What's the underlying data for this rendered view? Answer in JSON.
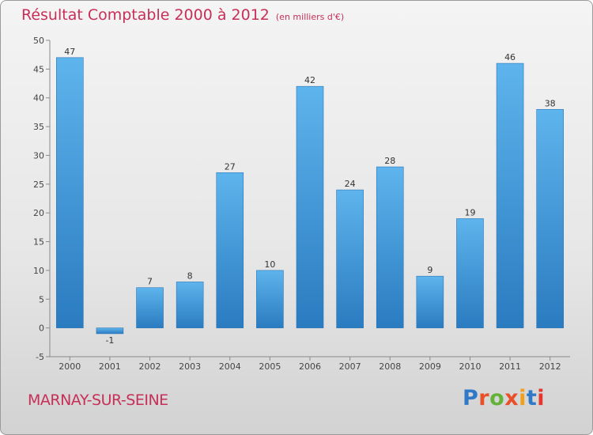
{
  "header": {
    "title": "Résultat Comptable 2000 à 2012",
    "unit": "(en milliers d'€)"
  },
  "footer": {
    "commune": "MARNAY-SUR-SEINE",
    "logo": "Proxiti"
  },
  "colors": {
    "title": "#c72f58",
    "bar_top": "#5eb4ec",
    "bar_bottom": "#2a7bc0",
    "logo_letters": [
      "#2f79c8",
      "#e8502a",
      "#63b33b",
      "#e8502a",
      "#f2a01c",
      "#2f79c8",
      "#e5362c"
    ]
  },
  "chart_data": {
    "type": "bar",
    "title": "Résultat Comptable 2000 à 2012",
    "subtitle": "(en milliers d'€)",
    "xlabel": "",
    "ylabel": "",
    "categories": [
      "2000",
      "2001",
      "2002",
      "2003",
      "2004",
      "2005",
      "2006",
      "2007",
      "2008",
      "2009",
      "2010",
      "2011",
      "2012"
    ],
    "values": [
      47,
      -1,
      7,
      8,
      27,
      10,
      42,
      24,
      28,
      9,
      19,
      46,
      38
    ],
    "ylim": [
      -5,
      50
    ],
    "yticks": [
      -5,
      0,
      5,
      10,
      15,
      20,
      25,
      30,
      35,
      40,
      45,
      50
    ],
    "grid": false,
    "legend": "none"
  }
}
